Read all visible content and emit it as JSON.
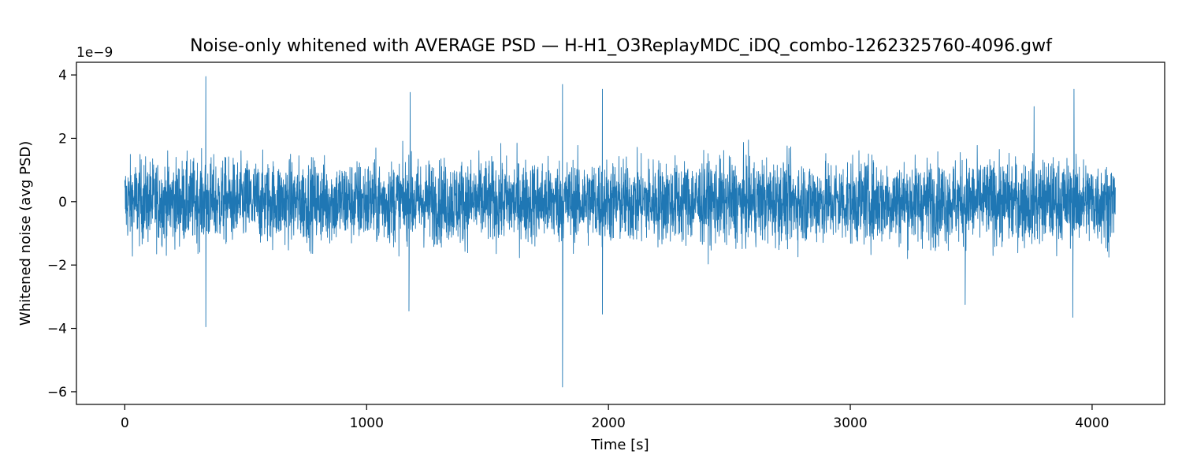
{
  "chart_data": {
    "type": "line",
    "title": "Noise-only whitened with AVERAGE PSD — H-H1_O3ReplayMDC_iDQ_combo-1262325760-4096.gwf",
    "xlabel": "Time [s]",
    "ylabel": "Whitened noise (avg PSD)",
    "y_offset_text": "1e−9",
    "xlim": [
      -200,
      4300
    ],
    "ylim": [
      -6.4,
      4.4
    ],
    "x_ticks": [
      0,
      1000,
      2000,
      3000,
      4000
    ],
    "x_tick_labels": [
      "0",
      "1000",
      "2000",
      "3000",
      "4000"
    ],
    "y_ticks": [
      -6,
      -4,
      -2,
      0,
      2,
      4
    ],
    "y_tick_labels": [
      "−6",
      "−4",
      "−2",
      "0",
      "2",
      "4"
    ],
    "grid": false,
    "series": [
      {
        "color": "#1f77b4",
        "x_range": [
          0,
          4096
        ],
        "typical_envelope_1e-9": [
          -1.9,
          2.0
        ],
        "peaks": [
          {
            "x": 335,
            "y": 3.95
          },
          {
            "x": 335,
            "y": -3.95
          },
          {
            "x": 1180,
            "y": 3.45
          },
          {
            "x": 1175,
            "y": -3.45
          },
          {
            "x": 1810,
            "y": 3.7
          },
          {
            "x": 1810,
            "y": -5.85
          },
          {
            "x": 1975,
            "y": 3.55
          },
          {
            "x": 1975,
            "y": -3.55
          },
          {
            "x": 3475,
            "y": -3.25
          },
          {
            "x": 3760,
            "y": 3.0
          },
          {
            "x": 3925,
            "y": 3.55
          },
          {
            "x": 3920,
            "y": -3.65
          }
        ]
      }
    ]
  }
}
